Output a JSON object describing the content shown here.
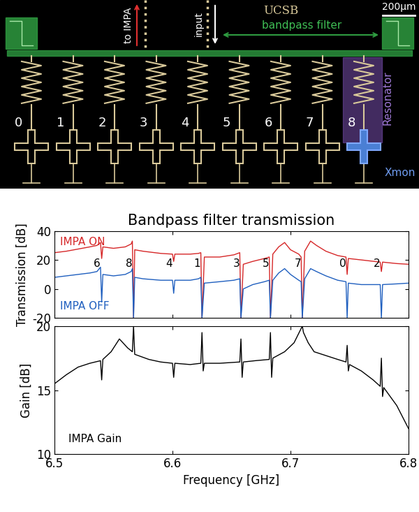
{
  "diagram": {
    "scale_bar": "200µm",
    "to_impa": "to IMPA",
    "input": "input",
    "logo": "UCSB",
    "filter": "bandpass filter",
    "resonator": "Resonator",
    "xmon": "Xmon",
    "qubits": [
      "0",
      "1",
      "2",
      "3",
      "4",
      "5",
      "6",
      "7",
      "8"
    ]
  },
  "chart_data": [
    {
      "type": "line",
      "title": "Bandpass filter transmission",
      "y_label": "Transmission [dB]",
      "xlim": [
        6.5,
        6.8
      ],
      "xticks": [
        6.5,
        6.6,
        6.7,
        6.8
      ],
      "ylim": [
        -20,
        40
      ],
      "yticks": [
        -20,
        0,
        20,
        40
      ],
      "tick_labels": "y",
      "x": [
        6.5,
        6.51,
        6.52,
        6.53,
        6.536,
        6.539,
        6.54,
        6.541,
        6.55,
        6.56,
        6.565,
        6.566,
        6.567,
        6.568,
        6.575,
        6.59,
        6.6,
        6.601,
        6.602,
        6.615,
        6.622,
        6.624,
        6.625,
        6.627,
        6.64,
        6.652,
        6.657,
        6.658,
        6.66,
        6.668,
        6.678,
        6.682,
        6.683,
        6.685,
        6.69,
        6.695,
        6.7,
        6.707,
        6.709,
        6.71,
        6.712,
        6.717,
        6.722,
        6.73,
        6.74,
        6.747,
        6.748,
        6.749,
        6.76,
        6.776,
        6.777,
        6.778,
        6.79,
        6.8
      ],
      "series": [
        {
          "name": "IMPA ON",
          "color": "#d62728",
          "values": [
            25,
            26,
            27.5,
            29,
            30,
            32,
            21,
            29,
            28,
            29,
            31,
            33,
            -20,
            27,
            26,
            24.5,
            24,
            19,
            24,
            24,
            24.5,
            25,
            -20,
            22,
            22,
            23.5,
            25,
            -20,
            17,
            19,
            21,
            22,
            -20,
            24,
            29,
            32,
            27,
            24,
            22,
            -20,
            26,
            33,
            30,
            26,
            23,
            22,
            10,
            21,
            20,
            18.5,
            12,
            18.5,
            17.5,
            17
          ]
        },
        {
          "name": "IMPA OFF",
          "color": "#1f5fbf",
          "values": [
            8,
            9,
            10,
            11,
            12,
            15,
            -9,
            10,
            9,
            10,
            12,
            14,
            -20,
            8,
            7,
            6,
            6,
            -3,
            6,
            6,
            7,
            8,
            -20,
            4,
            5,
            6,
            7,
            -20,
            0,
            3,
            5,
            6,
            -20,
            6,
            11,
            14,
            10,
            6,
            5,
            -20,
            7,
            14,
            12,
            9,
            6,
            5,
            -20,
            4,
            3,
            3,
            -20,
            3,
            3.5,
            4
          ]
        }
      ],
      "annotations": [
        {
          "text": "6",
          "x": 6.54
        },
        {
          "text": "8",
          "x": 6.567
        },
        {
          "text": "4",
          "x": 6.601
        },
        {
          "text": "1",
          "x": 6.625
        },
        {
          "text": "3",
          "x": 6.658
        },
        {
          "text": "5",
          "x": 6.683
        },
        {
          "text": "7",
          "x": 6.71
        },
        {
          "text": "0",
          "x": 6.748
        },
        {
          "text": "2",
          "x": 6.777
        }
      ]
    },
    {
      "type": "line",
      "x_label": "Frequency [GHz]",
      "y_label": "Gain [dB]",
      "xlim": [
        6.5,
        6.8
      ],
      "xticks": [
        6.5,
        6.6,
        6.7,
        6.8
      ],
      "ylim": [
        10,
        20
      ],
      "yticks": [
        10,
        15,
        20
      ],
      "x": [
        6.5,
        6.51,
        6.52,
        6.53,
        6.539,
        6.54,
        6.541,
        6.548,
        6.555,
        6.562,
        6.566,
        6.567,
        6.568,
        6.58,
        6.59,
        6.6,
        6.601,
        6.602,
        6.615,
        6.624,
        6.625,
        6.626,
        6.627,
        6.64,
        6.657,
        6.658,
        6.659,
        6.66,
        6.67,
        6.682,
        6.683,
        6.684,
        6.685,
        6.695,
        6.703,
        6.71,
        6.711,
        6.715,
        6.72,
        6.73,
        6.74,
        6.747,
        6.748,
        6.749,
        6.75,
        6.76,
        6.77,
        6.776,
        6.777,
        6.778,
        6.779,
        6.79,
        6.8
      ],
      "series": [
        {
          "name": "IMPA Gain",
          "color": "#000000",
          "values": [
            15.5,
            16.2,
            16.8,
            17.1,
            17.3,
            15.8,
            17.4,
            18,
            19,
            18.3,
            18,
            20,
            17.8,
            17.4,
            17.2,
            17.1,
            16,
            17.1,
            17,
            17.1,
            19.5,
            16.5,
            17.1,
            17.1,
            17.2,
            19,
            16,
            17.2,
            17.3,
            17.4,
            19.5,
            16,
            17.5,
            18,
            18.7,
            20,
            19.5,
            18.7,
            18,
            17.7,
            17.4,
            17.2,
            18.5,
            16.5,
            17,
            16.5,
            15.8,
            15.3,
            17.5,
            14.5,
            15.2,
            13.8,
            12
          ]
        }
      ]
    }
  ]
}
